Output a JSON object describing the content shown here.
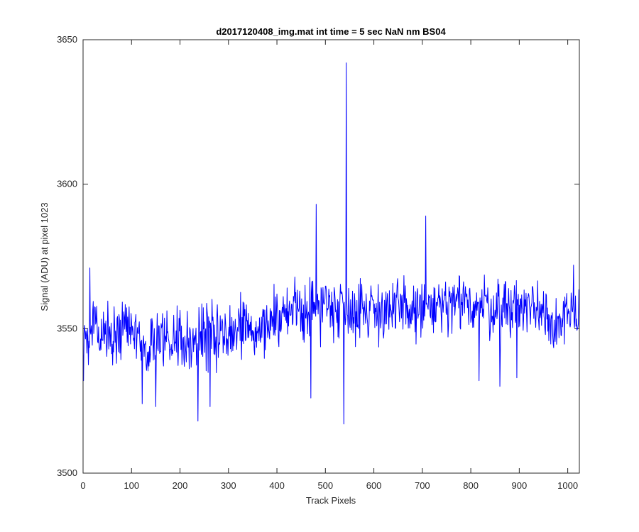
{
  "chart_data": {
    "type": "line",
    "title": "d2017120408_img.mat int time = 5 sec  NaN nm BS04",
    "xlabel": "Track Pixels",
    "ylabel": "Signal (ADU) at pixel 1023",
    "xlim": [
      0,
      1024
    ],
    "ylim": [
      3500,
      3650
    ],
    "xticks": [
      0,
      100,
      200,
      300,
      400,
      500,
      600,
      700,
      800,
      900,
      1000
    ],
    "yticks": [
      3500,
      3550,
      3600,
      3650
    ],
    "grid": false,
    "line_color": "#0000ff",
    "series": [
      {
        "values_note_free": true,
        "anchors": [
          [
            0,
            3543
          ],
          [
            5,
            3548
          ],
          [
            10,
            3540
          ],
          [
            15,
            3552
          ],
          [
            20,
            3560
          ],
          [
            30,
            3547
          ],
          [
            40,
            3550
          ],
          [
            60,
            3547
          ],
          [
            80,
            3551
          ],
          [
            100,
            3549
          ],
          [
            120,
            3547
          ],
          [
            140,
            3543
          ],
          [
            160,
            3546
          ],
          [
            200,
            3547
          ],
          [
            250,
            3546
          ],
          [
            300,
            3548
          ],
          [
            350,
            3551
          ],
          [
            400,
            3553
          ],
          [
            450,
            3557
          ],
          [
            480,
            3557
          ],
          [
            500,
            3559
          ],
          [
            550,
            3557
          ],
          [
            600,
            3557
          ],
          [
            650,
            3556
          ],
          [
            700,
            3557
          ],
          [
            750,
            3557
          ],
          [
            800,
            3559
          ],
          [
            850,
            3557
          ],
          [
            900,
            3558
          ],
          [
            950,
            3557
          ],
          [
            980,
            3551
          ],
          [
            1000,
            3553
          ],
          [
            1024,
            3555
          ]
        ],
        "noise_amplitude": 8,
        "seed": 1023,
        "spikes": [
          [
            1,
            3532
          ],
          [
            14,
            3571
          ],
          [
            122,
            3524
          ],
          [
            150,
            3523
          ],
          [
            237,
            3518
          ],
          [
            262,
            3523
          ],
          [
            470,
            3526
          ],
          [
            481,
            3593
          ],
          [
            538,
            3517
          ],
          [
            543,
            3642
          ],
          [
            707,
            3589
          ],
          [
            817,
            3532
          ],
          [
            860,
            3530
          ],
          [
            895,
            3533
          ],
          [
            1012,
            3572
          ]
        ]
      }
    ]
  }
}
